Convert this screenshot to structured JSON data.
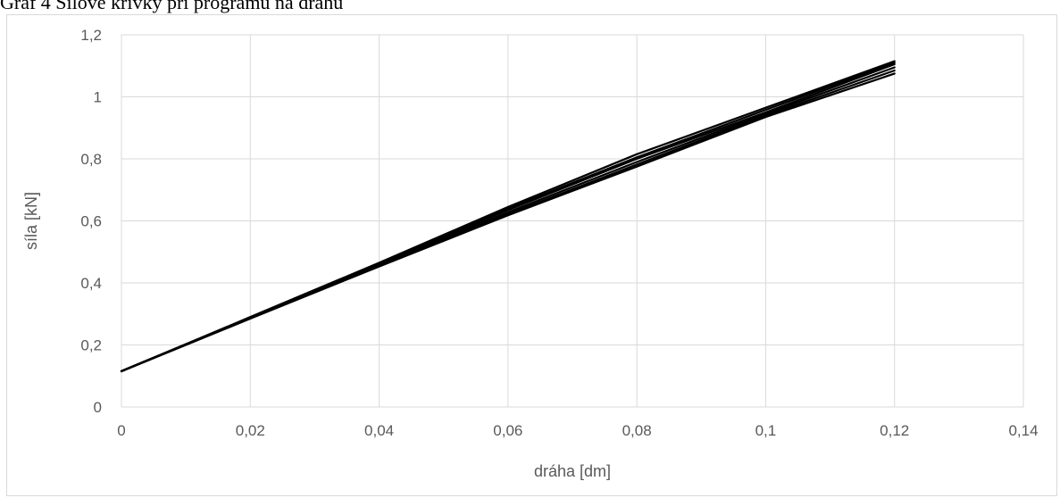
{
  "caption": "Graf 4 Silové křivky při programu na dráhu",
  "chart_data": {
    "type": "line",
    "xlabel": "dráha [dm]",
    "ylabel": "síla [kN]",
    "xlim": [
      0,
      0.14
    ],
    "ylim": [
      0,
      1.2
    ],
    "x_ticks": [
      "0",
      "0,02",
      "0,04",
      "0,06",
      "0,08",
      "0,1",
      "0,12",
      "0,14"
    ],
    "y_ticks": [
      "0",
      "0,2",
      "0,4",
      "0,6",
      "0,8",
      "1",
      "1,2"
    ],
    "x_tick_values": [
      0,
      0.02,
      0.04,
      0.06,
      0.08,
      0.1,
      0.12,
      0.14
    ],
    "y_tick_values": [
      0,
      0.2,
      0.4,
      0.6,
      0.8,
      1.0,
      1.2
    ],
    "grid": true,
    "line_color": "#000000",
    "grid_color": "#d9d9d9",
    "series": [
      {
        "x": [
          0,
          0.02,
          0.04,
          0.06,
          0.08,
          0.1,
          0.12
        ],
        "y": [
          0.115,
          0.29,
          0.465,
          0.645,
          0.815,
          0.965,
          1.115
        ]
      },
      {
        "x": [
          0,
          0.02,
          0.04,
          0.06,
          0.08,
          0.1,
          0.12
        ],
        "y": [
          0.115,
          0.288,
          0.46,
          0.635,
          0.8,
          0.95,
          1.105
        ]
      },
      {
        "x": [
          0,
          0.02,
          0.04,
          0.06,
          0.08,
          0.1,
          0.12
        ],
        "y": [
          0.115,
          0.287,
          0.458,
          0.628,
          0.79,
          0.945,
          1.095
        ]
      },
      {
        "x": [
          0,
          0.02,
          0.04,
          0.06,
          0.08,
          0.1,
          0.12
        ],
        "y": [
          0.115,
          0.286,
          0.456,
          0.622,
          0.782,
          0.94,
          1.085
        ]
      },
      {
        "x": [
          0,
          0.02,
          0.04,
          0.06,
          0.08,
          0.1,
          0.12
        ],
        "y": [
          0.115,
          0.285,
          0.453,
          0.618,
          0.775,
          0.935,
          1.075
        ]
      },
      {
        "x": [
          0,
          0.02,
          0.04,
          0.06,
          0.08,
          0.1,
          0.12
        ],
        "y": [
          0.116,
          0.289,
          0.462,
          0.64,
          0.805,
          0.958,
          1.11
        ]
      }
    ]
  }
}
